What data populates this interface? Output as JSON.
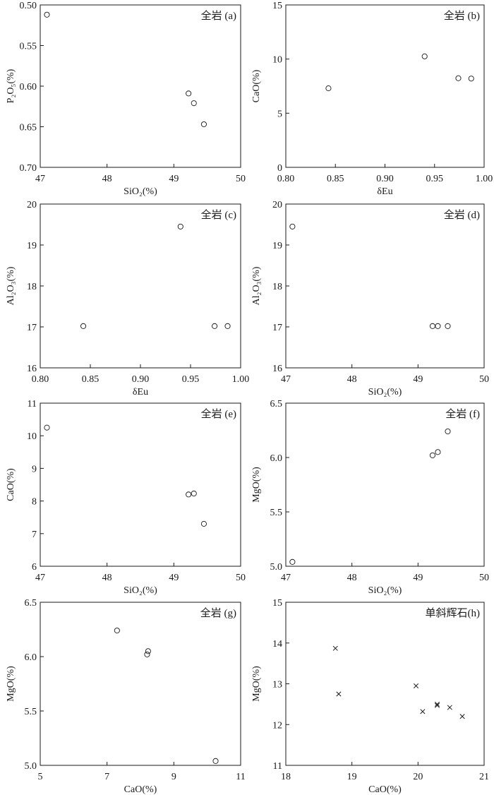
{
  "chart_data": [
    {
      "id": "a",
      "type": "scatter",
      "marker": "circle",
      "tag": "全岩 (a)",
      "xlabel": "SiO₂(%)",
      "ylabel": "P₂O₅(%)",
      "xlim": [
        47,
        50
      ],
      "ylim": [
        0.5,
        0.7
      ],
      "y_inverted": true,
      "xticks": [
        47,
        48,
        49,
        50
      ],
      "xtick_labels": [
        "47",
        "48",
        "49",
        "50"
      ],
      "yticks": [
        0.5,
        0.55,
        0.6,
        0.65,
        0.7
      ],
      "ytick_labels": [
        "0.50",
        "0.55",
        "0.60",
        "0.65",
        "0.70"
      ],
      "points": [
        [
          47.1,
          0.512
        ],
        [
          49.22,
          0.609
        ],
        [
          49.3,
          0.621
        ],
        [
          49.45,
          0.647
        ]
      ]
    },
    {
      "id": "b",
      "type": "scatter",
      "marker": "circle",
      "tag": "全岩 (b)",
      "xlabel": "δEu",
      "ylabel": "CaO(%)",
      "xlim": [
        0.8,
        1.0
      ],
      "ylim": [
        0,
        15
      ],
      "xticks": [
        0.8,
        0.85,
        0.9,
        0.95,
        1.0
      ],
      "xtick_labels": [
        "0.80",
        "0.85",
        "0.90",
        "0.95",
        "1.00"
      ],
      "yticks": [
        0,
        5,
        10,
        15
      ],
      "ytick_labels": [
        "0",
        "5",
        "10",
        "15"
      ],
      "points": [
        [
          0.843,
          7.3
        ],
        [
          0.94,
          10.25
        ],
        [
          0.974,
          8.23
        ],
        [
          0.987,
          8.2
        ]
      ]
    },
    {
      "id": "c",
      "type": "scatter",
      "marker": "circle",
      "tag": "全岩 (c)",
      "xlabel": "δEu",
      "ylabel": "Al₂O₃(%)",
      "xlim": [
        0.8,
        1.0
      ],
      "ylim": [
        16,
        20
      ],
      "xticks": [
        0.8,
        0.85,
        0.9,
        0.95,
        1.0
      ],
      "xtick_labels": [
        "0.80",
        "0.85",
        "0.90",
        "0.95",
        "1.00"
      ],
      "yticks": [
        16,
        17,
        18,
        19,
        20
      ],
      "ytick_labels": [
        "16",
        "17",
        "18",
        "19",
        "20"
      ],
      "points": [
        [
          0.843,
          17.02
        ],
        [
          0.94,
          19.45
        ],
        [
          0.974,
          17.02
        ],
        [
          0.987,
          17.02
        ]
      ]
    },
    {
      "id": "d",
      "type": "scatter",
      "marker": "circle",
      "tag": "全岩 (d)",
      "xlabel": "SiO₂(%)",
      "ylabel": "Al₂O₃(%)",
      "xlim": [
        47,
        50
      ],
      "ylim": [
        16,
        20
      ],
      "xticks": [
        47,
        48,
        49,
        50
      ],
      "xtick_labels": [
        "47",
        "48",
        "49",
        "50"
      ],
      "yticks": [
        16,
        17,
        18,
        19,
        20
      ],
      "ytick_labels": [
        "16",
        "17",
        "18",
        "19",
        "20"
      ],
      "points": [
        [
          47.1,
          19.45
        ],
        [
          49.22,
          17.02
        ],
        [
          49.3,
          17.02
        ],
        [
          49.45,
          17.02
        ]
      ]
    },
    {
      "id": "e",
      "type": "scatter",
      "marker": "circle",
      "tag": "全岩 (e)",
      "xlabel": "SiO₂(%)",
      "ylabel": "CaO(%)",
      "xlim": [
        47,
        50
      ],
      "ylim": [
        6,
        11
      ],
      "xticks": [
        47,
        48,
        49,
        50
      ],
      "xtick_labels": [
        "47",
        "48",
        "49",
        "50"
      ],
      "yticks": [
        6,
        7,
        8,
        9,
        10,
        11
      ],
      "ytick_labels": [
        "6",
        "7",
        "8",
        "9",
        "10",
        "11"
      ],
      "points": [
        [
          47.1,
          10.25
        ],
        [
          49.22,
          8.2
        ],
        [
          49.3,
          8.23
        ],
        [
          49.45,
          7.3
        ]
      ]
    },
    {
      "id": "f",
      "type": "scatter",
      "marker": "circle",
      "tag": "全岩 (f)",
      "xlabel": "SiO₂(%)",
      "ylabel": "MgO(%)",
      "xlim": [
        47,
        50
      ],
      "ylim": [
        5.0,
        6.5
      ],
      "xticks": [
        47,
        48,
        49,
        50
      ],
      "xtick_labels": [
        "47",
        "48",
        "49",
        "50"
      ],
      "yticks": [
        5.0,
        5.5,
        6.0,
        6.5
      ],
      "ytick_labels": [
        "5.0",
        "5.5",
        "6.0",
        "6.5"
      ],
      "points": [
        [
          47.1,
          5.04
        ],
        [
          49.22,
          6.02
        ],
        [
          49.3,
          6.05
        ],
        [
          49.45,
          6.24
        ]
      ]
    },
    {
      "id": "g",
      "type": "scatter",
      "marker": "circle",
      "tag": "全岩 (g)",
      "xlabel": "CaO(%)",
      "ylabel": "MgO(%)",
      "xlim": [
        5,
        11
      ],
      "ylim": [
        5.0,
        6.5
      ],
      "xticks": [
        5,
        7,
        9,
        11
      ],
      "xtick_labels": [
        "5",
        "7",
        "9",
        "11"
      ],
      "yticks": [
        5.0,
        5.5,
        6.0,
        6.5
      ],
      "ytick_labels": [
        "5.0",
        "5.5",
        "6.0",
        "6.5"
      ],
      "points": [
        [
          7.3,
          6.24
        ],
        [
          8.2,
          6.02
        ],
        [
          8.23,
          6.05
        ],
        [
          10.25,
          5.04
        ]
      ]
    },
    {
      "id": "h",
      "type": "scatter",
      "marker": "x",
      "tag": "单斜辉石(h)",
      "xlabel": "CaO(%)",
      "ylabel": "MgO(%)",
      "xlim": [
        18,
        21
      ],
      "ylim": [
        11,
        15
      ],
      "xticks": [
        18,
        19,
        20,
        21
      ],
      "xtick_labels": [
        "18",
        "19",
        "20",
        "21"
      ],
      "yticks": [
        11,
        12,
        13,
        14,
        15
      ],
      "ytick_labels": [
        "11",
        "12",
        "13",
        "14",
        "15"
      ],
      "points": [
        [
          18.75,
          13.87
        ],
        [
          18.8,
          12.75
        ],
        [
          19.97,
          12.95
        ],
        [
          20.07,
          12.32
        ],
        [
          20.29,
          12.5
        ],
        [
          20.29,
          12.47
        ],
        [
          20.48,
          12.42
        ],
        [
          20.67,
          12.2
        ]
      ]
    }
  ]
}
